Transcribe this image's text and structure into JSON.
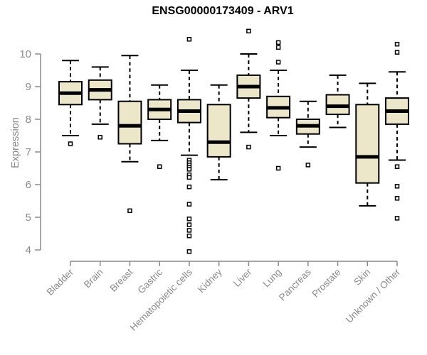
{
  "colors": {
    "box_fill": "#EDE7CA",
    "box_stroke": "#000000",
    "axis": "#8A8A8A",
    "label": "#8A8A8A",
    "title": "#000000",
    "background": "#FFFFFF"
  },
  "chart_data": {
    "type": "boxplot",
    "title": "ENSG00000173409 - ARV1",
    "ylabel": "Expression",
    "xlabel": "",
    "yticks": [
      4,
      5,
      6,
      7,
      8,
      9,
      10
    ],
    "ylim": [
      3.8,
      10.9
    ],
    "grid": false,
    "legend": "none",
    "categories": [
      "Bladder",
      "Brain",
      "Breast",
      "Gastric",
      "Hematopoietic cells",
      "Kidney",
      "Liver",
      "Lung",
      "Pancreas",
      "Prostate",
      "Skin",
      "Unknown / Other"
    ],
    "series": [
      {
        "category": "Bladder",
        "whisker_low": 7.5,
        "q1": 8.45,
        "median": 8.8,
        "q3": 9.15,
        "whisker_high": 9.8,
        "outliers": [
          7.25
        ]
      },
      {
        "category": "Brain",
        "whisker_low": 7.85,
        "q1": 8.6,
        "median": 8.9,
        "q3": 9.2,
        "whisker_high": 9.6,
        "outliers": [
          7.45
        ]
      },
      {
        "category": "Breast",
        "whisker_low": 6.7,
        "q1": 7.25,
        "median": 7.8,
        "q3": 8.55,
        "whisker_high": 9.95,
        "outliers": [
          5.2
        ]
      },
      {
        "category": "Gastric",
        "whisker_low": 7.35,
        "q1": 8.0,
        "median": 8.3,
        "q3": 8.6,
        "whisker_high": 9.05,
        "outliers": [
          6.55
        ]
      },
      {
        "category": "Hematopoietic cells",
        "whisker_low": 6.9,
        "q1": 7.9,
        "median": 8.25,
        "q3": 8.6,
        "whisker_high": 9.5,
        "outliers": [
          10.45,
          6.75,
          6.67,
          6.6,
          6.53,
          6.47,
          6.3,
          6.22,
          5.93,
          5.4,
          4.95,
          4.77,
          4.6,
          4.43,
          3.95
        ]
      },
      {
        "category": "Kidney",
        "whisker_low": 6.15,
        "q1": 6.85,
        "median": 7.3,
        "q3": 8.45,
        "whisker_high": 9.05,
        "outliers": []
      },
      {
        "category": "Liver",
        "whisker_low": 7.6,
        "q1": 8.65,
        "median": 9.0,
        "q3": 9.35,
        "whisker_high": 10.0,
        "outliers": [
          10.7,
          7.15
        ]
      },
      {
        "category": "Lung",
        "whisker_low": 7.5,
        "q1": 8.05,
        "median": 8.35,
        "q3": 8.7,
        "whisker_high": 9.5,
        "outliers": [
          10.35,
          10.2,
          9.75,
          6.5
        ]
      },
      {
        "category": "Pancreas",
        "whisker_low": 7.15,
        "q1": 7.55,
        "median": 7.8,
        "q3": 8.0,
        "whisker_high": 8.55,
        "outliers": [
          6.6
        ]
      },
      {
        "category": "Prostate",
        "whisker_low": 7.75,
        "q1": 8.15,
        "median": 8.4,
        "q3": 8.75,
        "whisker_high": 9.35,
        "outliers": []
      },
      {
        "category": "Skin",
        "whisker_low": 5.35,
        "q1": 6.05,
        "median": 6.85,
        "q3": 8.45,
        "whisker_high": 9.1,
        "outliers": []
      },
      {
        "category": "Unknown / Other",
        "whisker_low": 6.75,
        "q1": 7.85,
        "median": 8.25,
        "q3": 8.65,
        "whisker_high": 9.45,
        "outliers": [
          10.3,
          10.05,
          6.55,
          5.95,
          5.58,
          4.97
        ]
      }
    ]
  }
}
